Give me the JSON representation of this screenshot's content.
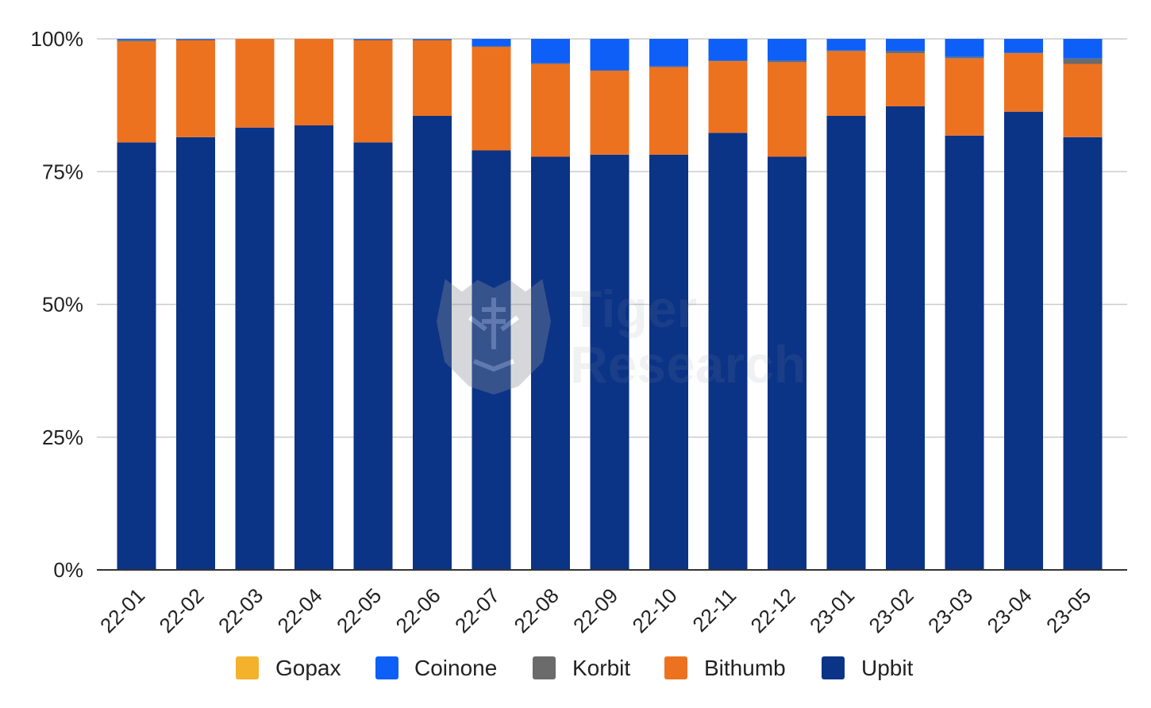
{
  "chart_data": {
    "type": "bar",
    "stacked": true,
    "categories": [
      "22-01",
      "22-02",
      "22-03",
      "22-04",
      "22-05",
      "22-06",
      "22-07",
      "22-08",
      "22-09",
      "22-10",
      "22-11",
      "22-12",
      "23-01",
      "23-02",
      "23-03",
      "23-04",
      "23-05"
    ],
    "series": [
      {
        "name": "Upbit",
        "color": "#0b3386",
        "values": [
          80.5,
          81.5,
          83.3,
          83.7,
          80.5,
          85.5,
          79.0,
          77.8,
          78.2,
          78.2,
          82.3,
          77.8,
          85.5,
          87.3,
          81.8,
          86.3,
          81.5
        ]
      },
      {
        "name": "Bithumb",
        "color": "#ed7220",
        "values": [
          19.0,
          18.2,
          16.7,
          16.3,
          19.2,
          14.2,
          19.5,
          17.5,
          15.8,
          16.5,
          13.5,
          17.8,
          12.2,
          10.0,
          14.5,
          11.0,
          13.8
        ]
      },
      {
        "name": "Korbit",
        "color": "#6b6b6b",
        "values": [
          0.3,
          0.2,
          0.0,
          0.0,
          0.2,
          0.2,
          0.1,
          0.1,
          0.1,
          0.1,
          0.1,
          0.3,
          0.1,
          0.4,
          0.3,
          0.1,
          1.0
        ]
      },
      {
        "name": "Coinone",
        "color": "#0e5ff7",
        "values": [
          0.2,
          0.1,
          0.0,
          0.0,
          0.1,
          0.1,
          1.4,
          4.6,
          5.9,
          5.2,
          4.1,
          4.1,
          2.2,
          2.3,
          3.4,
          2.6,
          3.7
        ]
      },
      {
        "name": "Gopax",
        "color": "#f4b12c",
        "values": [
          0,
          0,
          0,
          0,
          0,
          0,
          0,
          0,
          0,
          0,
          0,
          0,
          0,
          0,
          0,
          0,
          0
        ]
      }
    ],
    "legend_order": [
      "Gopax",
      "Coinone",
      "Korbit",
      "Bithumb",
      "Upbit"
    ],
    "ylim": [
      0,
      100
    ],
    "yticks": [
      "0%",
      "25%",
      "50%",
      "75%",
      "100%"
    ],
    "ytick_values": [
      0,
      25,
      50,
      75,
      100
    ],
    "grid": true,
    "legend_position": "bottom",
    "title": "",
    "xlabel": "",
    "ylabel": ""
  },
  "watermark": {
    "line1": "Tiger",
    "line2": "Research",
    "icon": "tiger-head-icon"
  }
}
